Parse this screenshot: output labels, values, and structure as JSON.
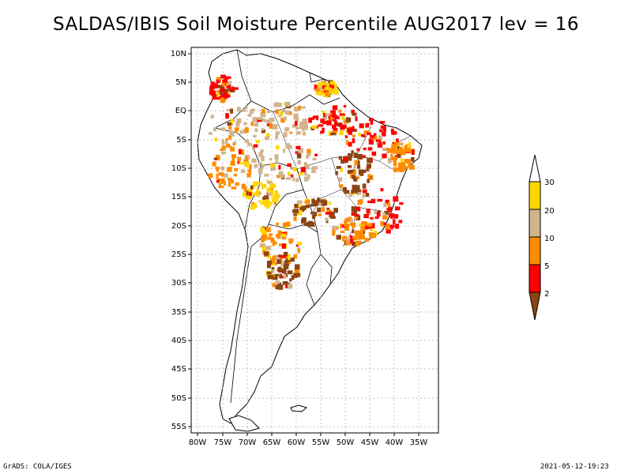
{
  "title": "SALDAS/IBIS Soil Moisture Percentile AUG2017 lev = 16",
  "map": {
    "lat_labels": [
      "10N",
      "5N",
      "EQ",
      "5S",
      "10S",
      "15S",
      "20S",
      "25S",
      "30S",
      "35S",
      "40S",
      "45S",
      "50S",
      "55S"
    ],
    "lon_labels": [
      "80W",
      "75W",
      "70W",
      "65W",
      "60W",
      "55W",
      "50W",
      "45W",
      "40W",
      "35W"
    ]
  },
  "legend": {
    "labels": [
      "30",
      "20",
      "10",
      "5",
      "2"
    ],
    "colors": [
      "#ffffff",
      "#ffd700",
      "#d2b48c",
      "#ff8c00",
      "#ff0000",
      "#8b4513"
    ]
  },
  "footer": {
    "left": "GrADS: COLA/IGES",
    "right": "2021-05-12-19:23"
  }
}
